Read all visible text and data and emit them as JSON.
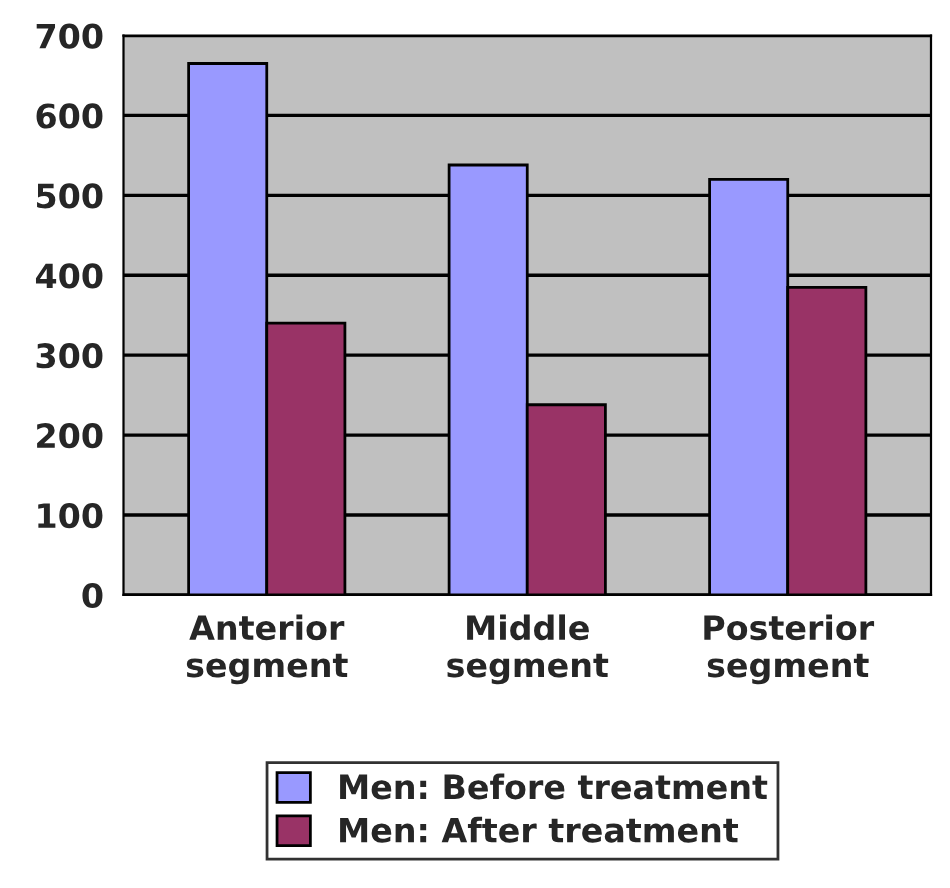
{
  "chart_data": {
    "type": "bar",
    "categories": [
      "Anterior\nsegment",
      "Middle\nsegment",
      "Posterior\nsegment"
    ],
    "series": [
      {
        "name": "Men: Before treatment",
        "color": "#9999ff",
        "values": [
          665,
          538,
          520
        ]
      },
      {
        "name": "Men: After treatment",
        "color": "#993366",
        "values": [
          340,
          238,
          385
        ]
      }
    ],
    "ylim": [
      0,
      700
    ],
    "yticks": [
      0,
      100,
      200,
      300,
      400,
      500,
      600,
      700
    ],
    "grid": "y",
    "legend": "bottom"
  }
}
